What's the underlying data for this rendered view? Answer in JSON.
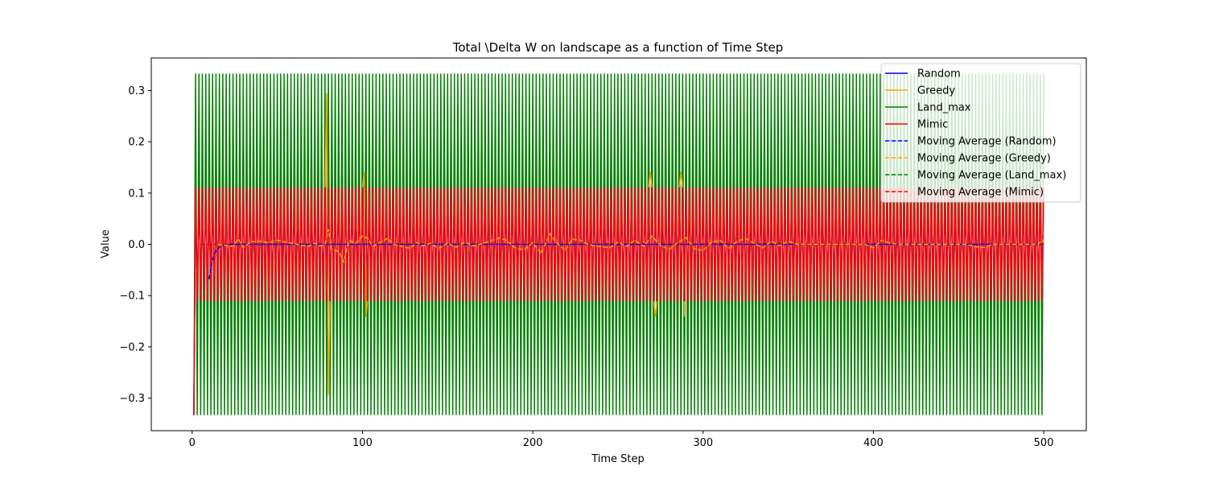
{
  "chart_data": {
    "type": "line",
    "title": "Total \\Delta W on landscape as a function of Time Step",
    "xlabel": "Time Step",
    "ylabel": "Value",
    "xlim": [
      -24,
      525
    ],
    "ylim": [
      -0.3635,
      0.3635
    ],
    "x_ticks": [
      0,
      100,
      200,
      300,
      400,
      500
    ],
    "y_ticks": [
      -0.3,
      -0.2,
      -0.1,
      0.0,
      0.1,
      0.2,
      0.3
    ],
    "x_tick_labels": [
      "0",
      "100",
      "200",
      "300",
      "400",
      "500"
    ],
    "y_tick_labels": [
      "−0.3",
      "−0.2",
      "−0.1",
      "0.0",
      "0.1",
      "0.2",
      "0.3"
    ],
    "grid": false,
    "legend_position": "top-right",
    "x_range": [
      1,
      500
    ],
    "series": [
      {
        "name": "Random",
        "color": "#0000ff",
        "dash": "solid",
        "description": "oscillates between +0.111 and -0.111 every step; starts at -0.333"
      },
      {
        "name": "Greedy",
        "color": "#ffa500",
        "dash": "solid",
        "spikes": [
          {
            "x": 79,
            "y": 0.295
          },
          {
            "x": 80,
            "y": -0.295
          },
          {
            "x": 101,
            "y": 0.141
          },
          {
            "x": 102,
            "y": -0.141
          },
          {
            "x": 269,
            "y": 0.141
          },
          {
            "x": 272,
            "y": -0.141
          },
          {
            "x": 287,
            "y": 0.141
          },
          {
            "x": 289,
            "y": -0.141
          }
        ]
      },
      {
        "name": "Land_max",
        "color": "#008000",
        "dash": "solid",
        "high": 0.333,
        "low": -0.333
      },
      {
        "name": "Mimic",
        "color": "#ff0000",
        "dash": "solid",
        "high": 0.111,
        "low": -0.111
      },
      {
        "name": "Moving Average (Random)",
        "color": "#0000ff",
        "dash": "dashed",
        "points": [
          [
            10,
            -0.068
          ],
          [
            11,
            -0.045
          ],
          [
            12,
            -0.03
          ],
          [
            13,
            -0.02
          ],
          [
            14,
            -0.012
          ],
          [
            16,
            -0.006
          ],
          [
            18,
            -0.002
          ],
          [
            22,
            0.0
          ],
          [
            500,
            0.0
          ]
        ]
      },
      {
        "name": "Moving Average (Greedy)",
        "color": "#ffa500",
        "dash": "dashed",
        "points": [
          [
            15,
            0.0
          ],
          [
            24,
            -0.004
          ],
          [
            27,
            0.011
          ],
          [
            30,
            -0.006
          ],
          [
            35,
            0.005
          ],
          [
            40,
            0.006
          ],
          [
            45,
            0.003
          ],
          [
            50,
            0.008
          ],
          [
            55,
            0.004
          ],
          [
            68,
            -0.004
          ],
          [
            72,
            0.002
          ],
          [
            75,
            -0.003
          ],
          [
            78,
            0.0
          ],
          [
            80,
            0.029
          ],
          [
            82,
            -0.01
          ],
          [
            86,
            -0.014
          ],
          [
            89,
            -0.034
          ],
          [
            92,
            0.007
          ],
          [
            96,
            0.002
          ],
          [
            100,
            0.016
          ],
          [
            103,
            0.012
          ],
          [
            106,
            -0.004
          ],
          [
            110,
            0.003
          ],
          [
            115,
            0.012
          ],
          [
            118,
            0.0
          ],
          [
            128,
            -0.008
          ],
          [
            132,
            0.004
          ],
          [
            135,
            -0.003
          ],
          [
            140,
            0.002
          ],
          [
            145,
            -0.008
          ],
          [
            150,
            0.002
          ],
          [
            155,
            -0.006
          ],
          [
            160,
            0.004
          ],
          [
            165,
            -0.003
          ],
          [
            170,
            0.001
          ],
          [
            180,
            0.012
          ],
          [
            184,
            0.009
          ],
          [
            190,
            -0.008
          ],
          [
            195,
            -0.01
          ],
          [
            200,
            0.003
          ],
          [
            205,
            -0.018
          ],
          [
            210,
            0.021
          ],
          [
            214,
            0.003
          ],
          [
            219,
            -0.012
          ],
          [
            223,
            0.01
          ],
          [
            228,
            0.008
          ],
          [
            232,
            0.0
          ],
          [
            245,
            -0.007
          ],
          [
            250,
            0.004
          ],
          [
            255,
            -0.004
          ],
          [
            260,
            0.008
          ],
          [
            265,
            -0.004
          ],
          [
            270,
            0.016
          ],
          [
            275,
            -0.002
          ],
          [
            280,
            -0.01
          ],
          [
            285,
            0.003
          ],
          [
            290,
            0.013
          ],
          [
            295,
            -0.009
          ],
          [
            300,
            -0.012
          ],
          [
            305,
            0.004
          ],
          [
            310,
            0.008
          ],
          [
            315,
            -0.008
          ],
          [
            320,
            0.006
          ],
          [
            325,
            0.011
          ],
          [
            330,
            0.002
          ],
          [
            335,
            -0.007
          ],
          [
            340,
            0.006
          ],
          [
            345,
            -0.003
          ],
          [
            350,
            0.006
          ],
          [
            355,
            0.0
          ],
          [
            395,
            0.0
          ],
          [
            400,
            -0.007
          ],
          [
            405,
            0.008
          ],
          [
            410,
            0.002
          ],
          [
            415,
            0.0
          ],
          [
            455,
            0.0
          ],
          [
            460,
            -0.005
          ],
          [
            465,
            -0.006
          ],
          [
            470,
            0.0
          ],
          [
            497,
            0.0
          ],
          [
            499,
            0.009
          ],
          [
            500,
            0.003
          ]
        ]
      },
      {
        "name": "Moving Average (Land_max)",
        "color": "#008000",
        "dash": "dashed",
        "points": [
          [
            5,
            0.0
          ],
          [
            500,
            0.0
          ]
        ]
      },
      {
        "name": "Moving Average (Mimic)",
        "color": "#ff0000",
        "dash": "dashed",
        "points": [
          [
            5,
            0.0
          ],
          [
            500,
            0.0
          ]
        ]
      }
    ]
  }
}
